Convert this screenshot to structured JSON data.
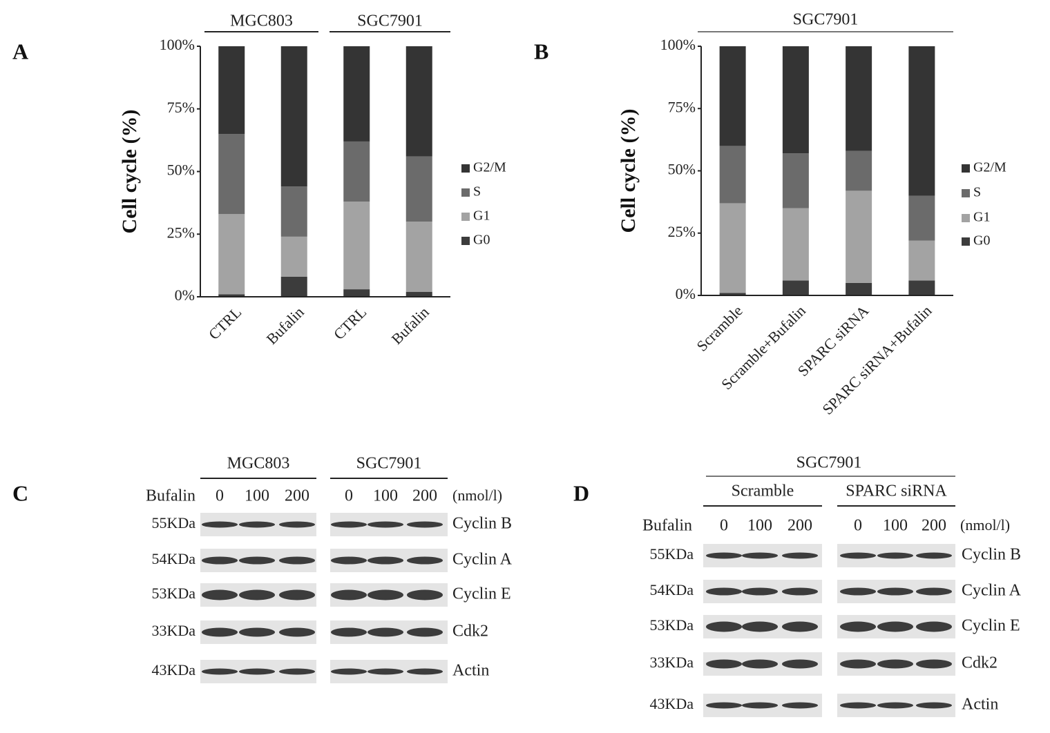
{
  "chart_data": [
    {
      "type": "stacked-bar",
      "panel": "A",
      "groups": [
        "MGC803",
        "SGC7901"
      ],
      "y_label": "Cell cycle (%)",
      "categories": [
        "CTRL",
        "Bufalin",
        "CTRL",
        "Bufalin"
      ],
      "series": [
        {
          "name": "G0",
          "color": "#3c3c3c",
          "values": [
            1,
            8,
            3,
            2
          ]
        },
        {
          "name": "G1",
          "color": "#a3a3a3",
          "values": [
            32,
            16,
            35,
            28
          ]
        },
        {
          "name": "S",
          "color": "#6b6b6b",
          "values": [
            32,
            20,
            24,
            26
          ]
        },
        {
          "name": "G2/M",
          "color": "#343434",
          "values": [
            35,
            56,
            38,
            44
          ]
        }
      ],
      "ylim": [
        0,
        100
      ],
      "yticks": [
        {
          "value": 0,
          "label": "0%"
        },
        {
          "value": 25,
          "label": "25%"
        },
        {
          "value": 50,
          "label": "50%"
        },
        {
          "value": 75,
          "label": "75%"
        },
        {
          "value": 100,
          "label": "100%"
        }
      ],
      "grid": false
    },
    {
      "type": "stacked-bar",
      "panel": "B",
      "groups": [
        "SGC7901"
      ],
      "y_label": "Cell cycle (%)",
      "categories": [
        "Scramble",
        "Scramble+Bufalin",
        "SPARC siRNA",
        "SPARC siRNA+Bufalin"
      ],
      "series": [
        {
          "name": "G0",
          "color": "#3c3c3c",
          "values": [
            1,
            6,
            5,
            6
          ]
        },
        {
          "name": "G1",
          "color": "#a3a3a3",
          "values": [
            36,
            29,
            37,
            16
          ]
        },
        {
          "name": "S",
          "color": "#6b6b6b",
          "values": [
            23,
            22,
            16,
            18
          ]
        },
        {
          "name": "G2/M",
          "color": "#343434",
          "values": [
            40,
            43,
            42,
            60
          ]
        }
      ],
      "ylim": [
        0,
        100
      ],
      "yticks": [
        {
          "value": 0,
          "label": "0%"
        },
        {
          "value": 25,
          "label": "25%"
        },
        {
          "value": 50,
          "label": "50%"
        },
        {
          "value": 75,
          "label": "75%"
        },
        {
          "value": 100,
          "label": "100%"
        }
      ],
      "grid": false
    }
  ],
  "blots": [
    {
      "panel": "C",
      "groups": [
        "MGC803",
        "SGC7901"
      ],
      "treatment": "Bufalin",
      "lanes": [
        [
          0,
          100,
          200
        ],
        [
          0,
          100,
          200
        ]
      ],
      "unit": "(nmol/l)",
      "rows": [
        {
          "size": "55KDa",
          "protein": "Cyclin B"
        },
        {
          "size": "54KDa",
          "protein": "Cyclin A"
        },
        {
          "size": "53KDa",
          "protein": "Cyclin E"
        },
        {
          "size": "33KDa",
          "protein": "Cdk2"
        },
        {
          "size": "43KDa",
          "protein": "Actin"
        }
      ]
    },
    {
      "panel": "D",
      "title": "SGC7901",
      "groups": [
        "Scramble",
        "SPARC siRNA"
      ],
      "treatment": "Bufalin",
      "lanes": [
        [
          0,
          100,
          200
        ],
        [
          0,
          100,
          200
        ]
      ],
      "unit": "(nmol/l)",
      "rows": [
        {
          "size": "55KDa",
          "protein": "Cyclin B"
        },
        {
          "size": "54KDa",
          "protein": "Cyclin A"
        },
        {
          "size": "53KDa",
          "protein": "Cyclin E"
        },
        {
          "size": "33KDa",
          "protein": "Cdk2"
        },
        {
          "size": "43KDa",
          "protein": "Actin"
        }
      ]
    }
  ]
}
